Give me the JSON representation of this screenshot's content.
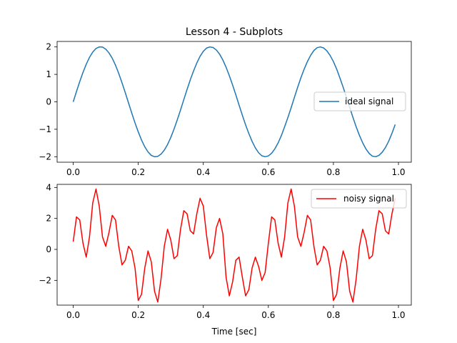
{
  "chart_data": [
    {
      "type": "line",
      "title": "Lesson 4 - Subplots",
      "xlabel": "",
      "ylabel": "",
      "xlim": [
        -0.0495,
        1.0395
      ],
      "ylim": [
        -2.2,
        2.2
      ],
      "xticks": [
        0.0,
        0.2,
        0.4,
        0.6,
        0.8,
        1.0
      ],
      "xtick_labels": [
        "0.0",
        "0.2",
        "0.4",
        "0.6",
        "0.8",
        "1.0"
      ],
      "yticks": [
        -2,
        -1,
        0,
        1,
        2
      ],
      "ytick_labels": [
        "−2",
        "−1",
        "0",
        "1",
        "2"
      ],
      "grid": false,
      "legend_position": "center-right",
      "series": [
        {
          "name": "ideal signal",
          "color": "#1f77b4",
          "x": [
            0.0,
            0.01,
            0.02,
            0.03,
            0.04,
            0.05,
            0.06,
            0.07,
            0.08,
            0.09,
            0.1,
            0.11,
            0.12,
            0.13,
            0.14,
            0.15,
            0.16,
            0.17,
            0.18,
            0.19,
            0.2,
            0.21,
            0.22,
            0.23,
            0.24,
            0.25,
            0.26,
            0.27,
            0.28,
            0.29,
            0.3,
            0.31,
            0.32,
            0.33,
            0.34,
            0.35,
            0.36,
            0.37,
            0.38,
            0.39,
            0.4,
            0.41,
            0.42,
            0.43,
            0.44,
            0.45,
            0.46,
            0.47,
            0.48,
            0.49,
            0.5,
            0.51,
            0.52,
            0.53,
            0.54,
            0.55,
            0.56,
            0.57,
            0.58,
            0.59,
            0.6,
            0.61,
            0.62,
            0.63,
            0.64,
            0.65,
            0.66,
            0.67,
            0.68,
            0.69,
            0.7,
            0.71,
            0.72,
            0.73,
            0.74,
            0.75,
            0.76,
            0.77,
            0.78,
            0.79,
            0.8,
            0.81,
            0.82,
            0.83,
            0.84,
            0.85,
            0.86,
            0.87,
            0.88,
            0.89,
            0.9,
            0.91,
            0.92,
            0.93,
            0.94,
            0.95,
            0.96,
            0.97,
            0.98,
            0.99
          ],
          "y": [
            0.0,
            0.374,
            0.735,
            1.071,
            1.369,
            1.618,
            1.812,
            1.943,
            2.0,
            1.994,
            1.921,
            1.782,
            1.588,
            1.335,
            1.032,
            0.694,
            0.334,
            -0.039,
            -0.41,
            -0.767,
            -1.095,
            -1.392,
            -1.638,
            -1.826,
            -1.951,
            -2.0,
            -1.987,
            -1.905,
            -1.76,
            -1.557,
            -1.297,
            -0.992,
            -0.654,
            -0.295,
            0.08,
            0.45,
            0.804,
            1.125,
            1.415,
            1.659,
            1.84,
            1.959,
            2.0,
            1.979,
            1.889,
            1.738,
            1.526,
            1.262,
            0.95,
            0.614,
            0.255,
            -0.12,
            -0.488,
            -0.84,
            -1.159,
            -1.441,
            -1.678,
            -1.855,
            -1.966,
            -2.0,
            -1.971,
            -1.873,
            -1.713,
            -1.497,
            -1.23,
            -0.908,
            -0.573,
            -0.214,
            0.16,
            0.527,
            0.876,
            1.19,
            1.465,
            1.694,
            1.87,
            1.974,
            2.0,
            1.962,
            1.856,
            1.688,
            1.466,
            1.194,
            0.868,
            0.532,
            0.174,
            -0.199,
            -0.566,
            -0.911,
            -1.222,
            -1.493,
            -1.716,
            -1.881,
            -1.98,
            -2.0,
            -1.951,
            -1.837,
            -1.664,
            -1.433,
            -1.148,
            -0.828
          ]
        }
      ]
    },
    {
      "type": "line",
      "title": "",
      "xlabel": "Time [sec]",
      "ylabel": "",
      "xlim": [
        -0.0495,
        1.0395
      ],
      "ylim": [
        -3.6,
        4.2
      ],
      "xticks": [
        0.0,
        0.2,
        0.4,
        0.6,
        0.8,
        1.0
      ],
      "xtick_labels": [
        "0.0",
        "0.2",
        "0.4",
        "0.6",
        "0.8",
        "1.0"
      ],
      "yticks": [
        -2,
        0,
        2,
        4
      ],
      "ytick_labels": [
        "−2",
        "0",
        "2",
        "4"
      ],
      "grid": false,
      "legend_position": "top-right",
      "series": [
        {
          "name": "noisy signal",
          "color": "#ff0000",
          "x": [
            0.0,
            0.01,
            0.02,
            0.03,
            0.04,
            0.05,
            0.06,
            0.07,
            0.08,
            0.09,
            0.1,
            0.11,
            0.12,
            0.13,
            0.14,
            0.15,
            0.16,
            0.17,
            0.18,
            0.19,
            0.2,
            0.21,
            0.22,
            0.23,
            0.24,
            0.25,
            0.26,
            0.27,
            0.28,
            0.29,
            0.3,
            0.31,
            0.32,
            0.33,
            0.34,
            0.35,
            0.36,
            0.37,
            0.38,
            0.39,
            0.4,
            0.41,
            0.42,
            0.43,
            0.44,
            0.45,
            0.46,
            0.47,
            0.48,
            0.49,
            0.5,
            0.51,
            0.52,
            0.53,
            0.54,
            0.55,
            0.56,
            0.57,
            0.58,
            0.59,
            0.6,
            0.61,
            0.62,
            0.63,
            0.64,
            0.65,
            0.66,
            0.67,
            0.68,
            0.69,
            0.7,
            0.71,
            0.72,
            0.73,
            0.74,
            0.75,
            0.76,
            0.77,
            0.78,
            0.79,
            0.8,
            0.81,
            0.82,
            0.83,
            0.84,
            0.85,
            0.86,
            0.87,
            0.88,
            0.89,
            0.9,
            0.91,
            0.92,
            0.93,
            0.94,
            0.95,
            0.96,
            0.97,
            0.98,
            0.99
          ],
          "y": [
            0.5,
            2.1,
            1.9,
            0.4,
            -0.5,
            0.8,
            3.0,
            3.9,
            2.8,
            0.8,
            0.2,
            1.1,
            2.2,
            1.9,
            0.2,
            -1.0,
            -0.7,
            0.2,
            -0.1,
            -1.2,
            -3.3,
            -2.9,
            -1.2,
            -0.1,
            -0.8,
            -2.7,
            -3.4,
            -1.9,
            0.2,
            1.3,
            0.6,
            -0.6,
            -0.4,
            1.3,
            2.5,
            2.3,
            1.2,
            1.0,
            2.3,
            3.3,
            2.8,
            0.9,
            -0.6,
            -0.2,
            1.4,
            2.0,
            1.0,
            -1.8,
            -3.0,
            -2.1,
            -0.7,
            -0.5,
            -1.8,
            -3.0,
            -2.6,
            -1.2,
            -0.5,
            -1.1,
            -2.0,
            -1.5,
            0.4,
            2.1,
            1.9,
            0.4,
            -0.5,
            0.8,
            3.0,
            3.9,
            2.8,
            0.8,
            0.2,
            1.1,
            2.2,
            1.9,
            0.2,
            -1.0,
            -0.7,
            0.2,
            -0.1,
            -1.2,
            -3.3,
            -2.9,
            -1.2,
            -0.1,
            -0.8,
            -2.7,
            -3.4,
            -1.9,
            0.2,
            1.3,
            0.6,
            -0.6,
            -0.4,
            1.3,
            2.5,
            2.3,
            1.2,
            1.0,
            2.3,
            3.3
          ]
        }
      ]
    }
  ]
}
